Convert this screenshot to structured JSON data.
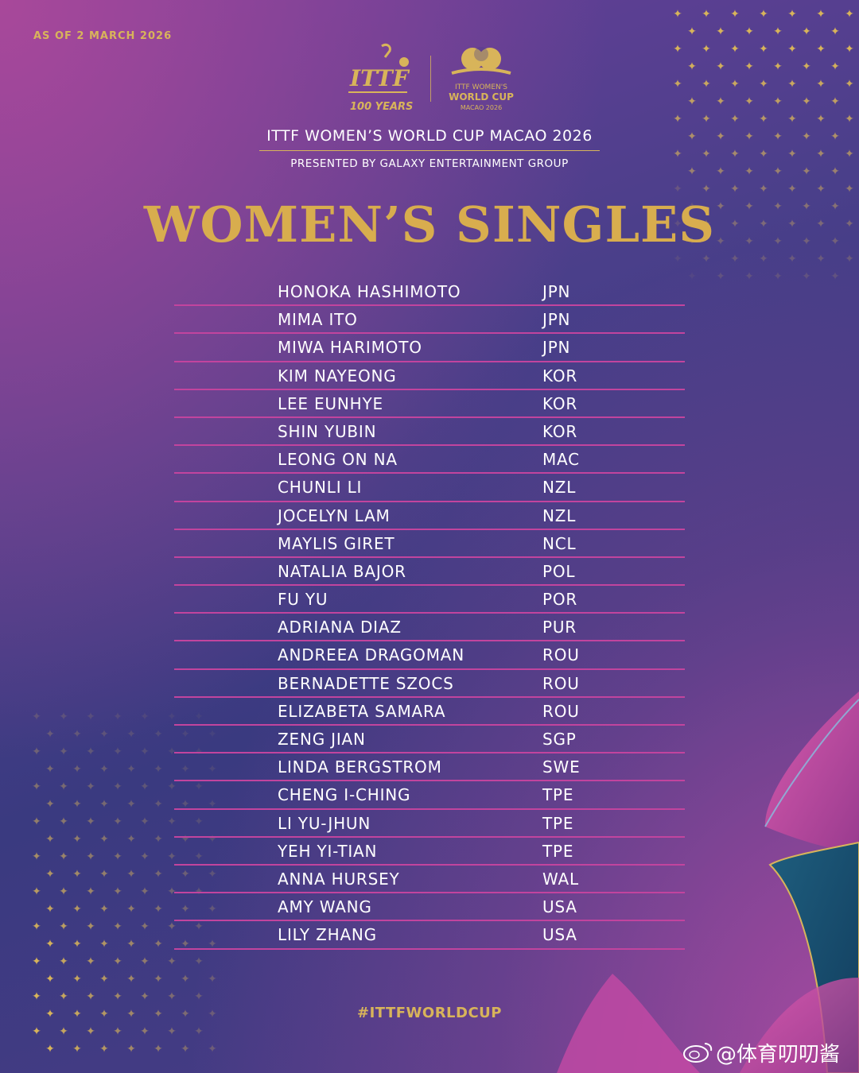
{
  "header": {
    "as_of": "AS OF 2 MARCH 2026",
    "ittf_logo_text": "ITTF",
    "ittf_years_text": "100 YEARS",
    "wc_logo_line1": "ITTF WOMEN'S",
    "wc_logo_line2": "WORLD CUP",
    "wc_logo_line3": "MACAO 2026",
    "event_title": "ITTF WOMEN’S WORLD CUP MACAO 2026",
    "presented_by": "PRESENTED BY GALAXY ENTERTAINMENT GROUP"
  },
  "main_heading": "WOMEN’S SINGLES",
  "players": [
    {
      "name": "HONOKA HASHIMOTO",
      "country": "JPN"
    },
    {
      "name": "MIMA ITO",
      "country": "JPN"
    },
    {
      "name": "MIWA HARIMOTO",
      "country": "JPN"
    },
    {
      "name": "KIM NAYEONG",
      "country": "KOR"
    },
    {
      "name": "LEE EUNHYE",
      "country": "KOR"
    },
    {
      "name": "SHIN YUBIN",
      "country": "KOR"
    },
    {
      "name": "LEONG ON NA",
      "country": "MAC"
    },
    {
      "name": "CHUNLI LI",
      "country": "NZL"
    },
    {
      "name": "JOCELYN LAM",
      "country": "NZL"
    },
    {
      "name": "MAYLIS GIRET",
      "country": "NCL"
    },
    {
      "name": "NATALIA BAJOR",
      "country": "POL"
    },
    {
      "name": "FU YU",
      "country": "POR"
    },
    {
      "name": "ADRIANA DIAZ",
      "country": "PUR"
    },
    {
      "name": "ANDREEA DRAGOMAN",
      "country": "ROU"
    },
    {
      "name": "BERNADETTE SZOCS",
      "country": "ROU"
    },
    {
      "name": "ELIZABETA SAMARA",
      "country": "ROU"
    },
    {
      "name": "ZENG JIAN",
      "country": "SGP"
    },
    {
      "name": "LINDA BERGSTROM",
      "country": "SWE"
    },
    {
      "name": "CHENG I-CHING",
      "country": "TPE"
    },
    {
      "name": "LI YU-JHUN",
      "country": "TPE"
    },
    {
      "name": "YEH YI-TIAN",
      "country": "TPE"
    },
    {
      "name": "ANNA HURSEY",
      "country": "WAL"
    },
    {
      "name": "AMY WANG",
      "country": "USA"
    },
    {
      "name": "LILY ZHANG",
      "country": "USA"
    }
  ],
  "footer": {
    "hashtag": "#ITTFWORLDCUP",
    "watermark": "@体育叨叨酱"
  },
  "colors": {
    "gold": "#d8b45a",
    "divider_pink": "#c2449e",
    "text_white": "#ffffff"
  }
}
